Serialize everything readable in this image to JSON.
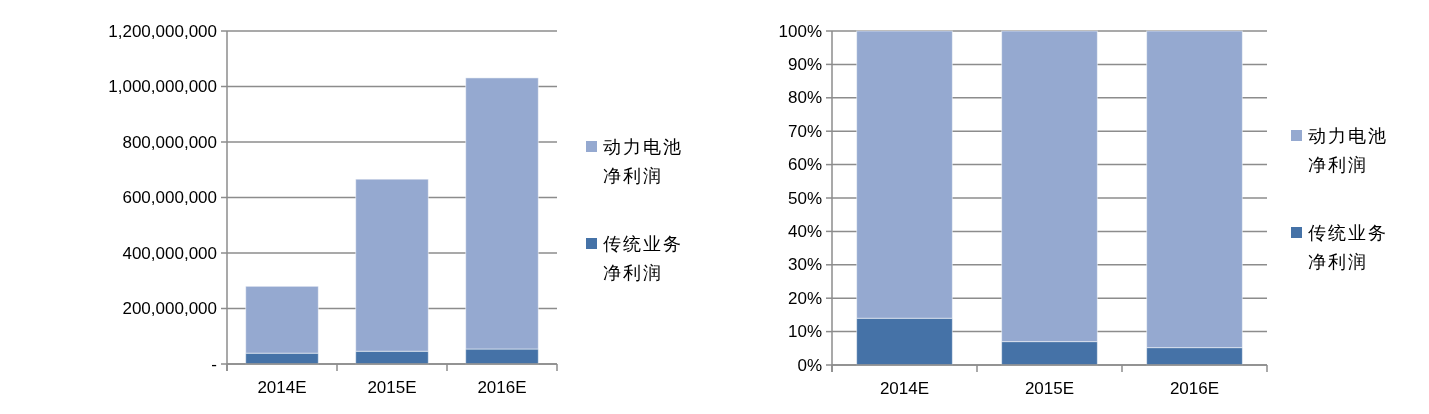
{
  "chart_data": [
    {
      "type": "bar",
      "stacked": true,
      "categories": [
        "2014E",
        "2015E",
        "2016E"
      ],
      "series": [
        {
          "name": "传统业务净利润",
          "color": "#4572a7",
          "values": [
            39000000,
            46000000,
            54000000
          ]
        },
        {
          "name": "动力电池净利润",
          "color": "#95a9d0",
          "values": [
            241000000,
            620000000,
            977000000
          ]
        }
      ],
      "ylim": [
        0,
        1200000000
      ],
      "yticks": [
        {
          "value": 0,
          "label": "-"
        },
        {
          "value": 200000000,
          "label": "200,000,000"
        },
        {
          "value": 400000000,
          "label": "400,000,000"
        },
        {
          "value": 600000000,
          "label": "600,000,000"
        },
        {
          "value": 800000000,
          "label": "800,000,000"
        },
        {
          "value": 1000000000,
          "label": "1,000,000,000"
        },
        {
          "value": 1200000000,
          "label": "1,200,000,000"
        }
      ],
      "grid": "y",
      "legend": "right"
    },
    {
      "type": "bar",
      "stacked": true,
      "categories": [
        "2014E",
        "2015E",
        "2016E"
      ],
      "series": [
        {
          "name": "传统业务净利润",
          "color": "#4572a7",
          "values": [
            14,
            7,
            5.2
          ]
        },
        {
          "name": "动力电池净利润",
          "color": "#95a9d0",
          "values": [
            86,
            93,
            94.8
          ]
        }
      ],
      "ylim": [
        0,
        100
      ],
      "yticks": [
        {
          "value": 0,
          "label": "0%"
        },
        {
          "value": 10,
          "label": "10%"
        },
        {
          "value": 20,
          "label": "20%"
        },
        {
          "value": 30,
          "label": "30%"
        },
        {
          "value": 40,
          "label": "40%"
        },
        {
          "value": 50,
          "label": "50%"
        },
        {
          "value": 60,
          "label": "60%"
        },
        {
          "value": 70,
          "label": "70%"
        },
        {
          "value": 80,
          "label": "80%"
        },
        {
          "value": 90,
          "label": "90%"
        },
        {
          "value": 100,
          "label": "100%"
        }
      ],
      "grid": "y",
      "legend": "right"
    }
  ]
}
